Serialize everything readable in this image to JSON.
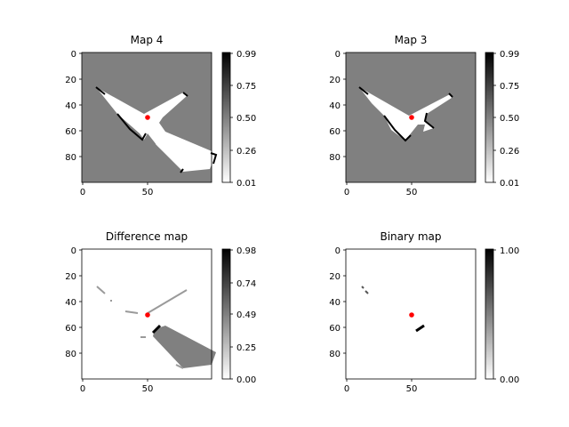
{
  "chart_data": [
    {
      "type": "heatmap",
      "title": "Map 4",
      "xticks": [
        "0",
        "50"
      ],
      "yticks": [
        "0",
        "20",
        "40",
        "60",
        "80"
      ],
      "colorbar": {
        "ticks": [
          "0.99",
          "0.75",
          "0.50",
          "0.26",
          "0.01"
        ],
        "min": 0.01,
        "max": 0.99
      },
      "background_value": 0.5,
      "marker": {
        "x": 50,
        "y": 50,
        "color": "#ff0000"
      }
    },
    {
      "type": "heatmap",
      "title": "Map 3",
      "xticks": [
        "0",
        "50"
      ],
      "yticks": [
        "0",
        "20",
        "40",
        "60",
        "80"
      ],
      "colorbar": {
        "ticks": [
          "0.99",
          "0.75",
          "0.50",
          "0.26",
          "0.01"
        ],
        "min": 0.01,
        "max": 0.99
      },
      "background_value": 0.5,
      "marker": {
        "x": 50,
        "y": 50,
        "color": "#ff0000"
      }
    },
    {
      "type": "heatmap",
      "title": "Difference map",
      "xticks": [
        "0",
        "50"
      ],
      "yticks": [
        "0",
        "20",
        "40",
        "60",
        "80"
      ],
      "colorbar": {
        "ticks": [
          "0.98",
          "0.74",
          "0.49",
          "0.25",
          "0.00"
        ],
        "min": 0.0,
        "max": 0.98
      },
      "background_value": 0.0,
      "marker": {
        "x": 50,
        "y": 50,
        "color": "#ff0000"
      }
    },
    {
      "type": "heatmap",
      "title": "Binary map",
      "xticks": [
        "0",
        "50"
      ],
      "yticks": [
        "0",
        "20",
        "40",
        "60",
        "80"
      ],
      "colorbar": {
        "ticks": [
          "1.00",
          "0.00"
        ],
        "min": 0.0,
        "max": 1.0
      },
      "background_value": 0.0,
      "marker": {
        "x": 50,
        "y": 50,
        "color": "#ff0000"
      }
    }
  ]
}
